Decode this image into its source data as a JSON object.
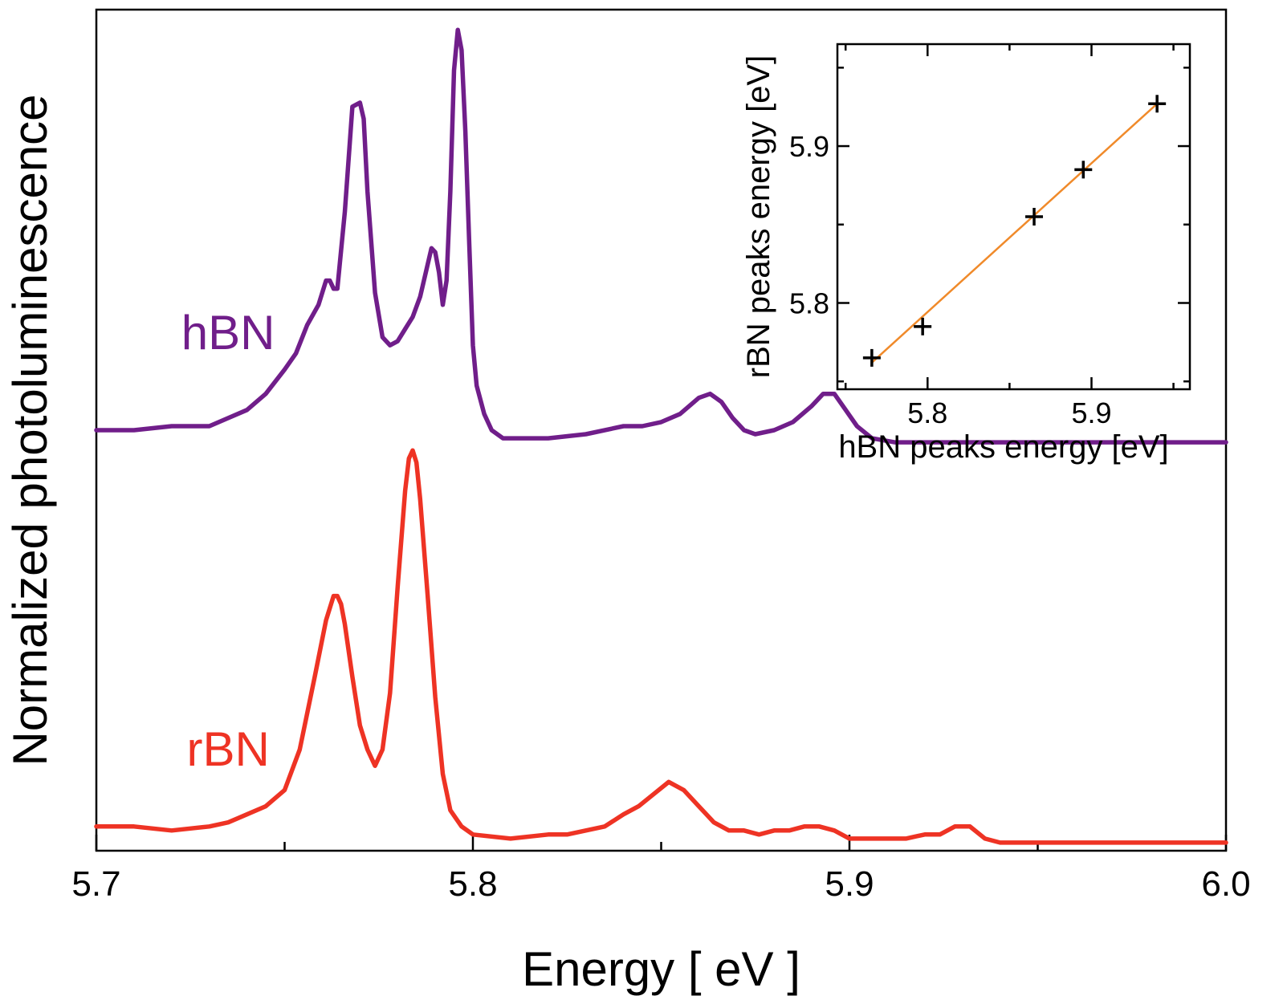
{
  "chart_data": [
    {
      "type": "line",
      "name": "main",
      "xlabel": "Energy  [ eV ]",
      "ylabel": "Normalized photoluminescence",
      "xlim": [
        5.7,
        6.0
      ],
      "ylim": [
        -0.03,
        2.05
      ],
      "xticks_major": [
        5.7,
        5.8,
        5.9,
        6.0
      ],
      "xtick_labels": [
        "5.7",
        "5.8",
        "5.9",
        "6.0"
      ],
      "xticks_minor": [
        5.75,
        5.85,
        5.95
      ],
      "y_tick_labels": false,
      "grid": false,
      "series": [
        {
          "name": "hBN",
          "color": "#701e8a",
          "x": [
            5.7,
            5.71,
            5.72,
            5.73,
            5.735,
            5.74,
            5.745,
            5.75,
            5.753,
            5.756,
            5.759,
            5.761,
            5.762,
            5.763,
            5.764,
            5.766,
            5.768,
            5.77,
            5.771,
            5.772,
            5.774,
            5.776,
            5.778,
            5.78,
            5.782,
            5.784,
            5.786,
            5.788,
            5.789,
            5.79,
            5.791,
            5.792,
            5.793,
            5.794,
            5.795,
            5.796,
            5.797,
            5.798,
            5.799,
            5.8,
            5.801,
            5.803,
            5.805,
            5.808,
            5.812,
            5.82,
            5.83,
            5.84,
            5.845,
            5.85,
            5.855,
            5.86,
            5.863,
            5.866,
            5.869,
            5.872,
            5.875,
            5.88,
            5.885,
            5.89,
            5.893,
            5.896,
            5.899,
            5.902,
            5.906,
            5.912,
            5.92,
            5.94,
            5.97,
            6.0
          ],
          "y": [
            1.01,
            1.01,
            1.02,
            1.02,
            1.04,
            1.06,
            1.1,
            1.16,
            1.2,
            1.27,
            1.32,
            1.38,
            1.38,
            1.36,
            1.36,
            1.55,
            1.81,
            1.82,
            1.78,
            1.6,
            1.35,
            1.24,
            1.22,
            1.23,
            1.26,
            1.29,
            1.34,
            1.42,
            1.46,
            1.45,
            1.4,
            1.32,
            1.38,
            1.6,
            1.9,
            2.0,
            1.95,
            1.75,
            1.48,
            1.22,
            1.12,
            1.05,
            1.01,
            0.99,
            0.99,
            0.99,
            1.0,
            1.02,
            1.02,
            1.03,
            1.05,
            1.09,
            1.1,
            1.08,
            1.04,
            1.01,
            1.0,
            1.01,
            1.03,
            1.07,
            1.1,
            1.1,
            1.06,
            1.02,
            0.99,
            0.98,
            0.98,
            0.98,
            0.98,
            0.98
          ]
        },
        {
          "name": "rBN",
          "color": "#ee3324",
          "x": [
            5.7,
            5.71,
            5.72,
            5.73,
            5.735,
            5.74,
            5.745,
            5.75,
            5.754,
            5.758,
            5.761,
            5.763,
            5.764,
            5.765,
            5.766,
            5.768,
            5.77,
            5.772,
            5.774,
            5.776,
            5.778,
            5.78,
            5.782,
            5.783,
            5.784,
            5.785,
            5.786,
            5.788,
            5.79,
            5.792,
            5.794,
            5.797,
            5.8,
            5.81,
            5.82,
            5.825,
            5.83,
            5.835,
            5.84,
            5.844,
            5.848,
            5.852,
            5.856,
            5.86,
            5.864,
            5.868,
            5.872,
            5.876,
            5.88,
            5.884,
            5.888,
            5.892,
            5.896,
            5.9,
            5.905,
            5.91,
            5.915,
            5.92,
            5.924,
            5.928,
            5.932,
            5.936,
            5.94,
            5.95,
            5.97,
            6.0
          ],
          "y": [
            0.03,
            0.03,
            0.02,
            0.03,
            0.04,
            0.06,
            0.08,
            0.12,
            0.22,
            0.4,
            0.54,
            0.6,
            0.6,
            0.58,
            0.53,
            0.4,
            0.28,
            0.22,
            0.18,
            0.22,
            0.36,
            0.62,
            0.86,
            0.94,
            0.96,
            0.93,
            0.84,
            0.6,
            0.35,
            0.16,
            0.07,
            0.03,
            0.01,
            0.0,
            0.01,
            0.01,
            0.02,
            0.03,
            0.06,
            0.08,
            0.11,
            0.14,
            0.12,
            0.08,
            0.04,
            0.02,
            0.02,
            0.01,
            0.02,
            0.02,
            0.03,
            0.03,
            0.02,
            0.0,
            0.0,
            0.0,
            0.0,
            0.01,
            0.01,
            0.03,
            0.03,
            0.0,
            -0.01,
            -0.01,
            -0.01,
            -0.01
          ]
        }
      ],
      "annotations": [
        {
          "text": "hBN",
          "x": 5.735,
          "y": 1.21,
          "color": "#701e8a"
        },
        {
          "text": "rBN",
          "x": 5.735,
          "y": 0.18,
          "color": "#ee3324"
        }
      ]
    },
    {
      "type": "scatter",
      "name": "inset",
      "xlabel": "hBN peaks energy [eV]",
      "ylabel": "rBN peaks energy  [eV]",
      "xlim": [
        5.745,
        5.96
      ],
      "ylim": [
        5.745,
        5.965
      ],
      "xticks_major": [
        5.8,
        5.9
      ],
      "xtick_labels": [
        "5.8",
        "5.9"
      ],
      "xticks_minor": [
        5.75,
        5.85,
        5.95
      ],
      "yticks_major": [
        5.8,
        5.9
      ],
      "ytick_labels": [
        "5.8",
        "5.9"
      ],
      "yticks_minor": [
        5.75,
        5.85,
        5.95
      ],
      "points": {
        "marker": "+",
        "color": "#000000",
        "x": [
          5.766,
          5.797,
          5.865,
          5.895,
          5.94
        ],
        "y": [
          5.765,
          5.785,
          5.855,
          5.885,
          5.927
        ]
      },
      "fit_line": {
        "color": "#f08a2a",
        "x": [
          5.766,
          5.94
        ],
        "y": [
          5.762,
          5.927
        ]
      }
    }
  ]
}
